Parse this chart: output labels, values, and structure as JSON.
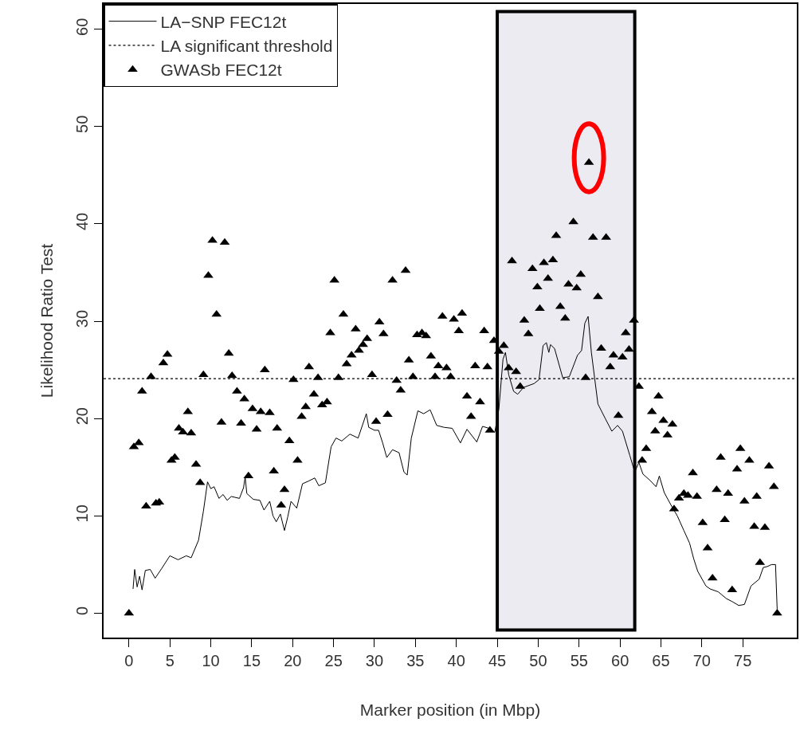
{
  "chart_data": {
    "type": "scatter",
    "xlabel": "Marker position (in Mbp)",
    "ylabel": "Likelihood Ratio Test",
    "xlim": [
      -3.1,
      81.6
    ],
    "ylim": [
      -2.5,
      62.6
    ],
    "xticks": [
      0,
      5,
      10,
      15,
      20,
      25,
      30,
      35,
      40,
      45,
      50,
      55,
      60,
      65,
      70,
      75
    ],
    "yticks": [
      0,
      10,
      20,
      30,
      40,
      50,
      60
    ],
    "grid": false,
    "legend": "top left",
    "ref_lines": [
      {
        "axis": "y",
        "value": 24.1,
        "label": "LA significant threshold",
        "color": "#000000",
        "line_style": "dotted"
      }
    ],
    "bands": [
      {
        "axis": "x",
        "from": 45,
        "to": 61.8,
        "label": null,
        "color": "#edebf2"
      }
    ],
    "series": [
      {
        "name": "LA−SNP FEC12t",
        "type": "line",
        "color": "#000000",
        "line_style": "solid",
        "marker": "none",
        "x": [
          0.5,
          0.7,
          1.0,
          1.3,
          1.6,
          2.0,
          2.6,
          3.2,
          4.0,
          5.0,
          6.0,
          7.0,
          7.6,
          8.5,
          9.1,
          9.6,
          10.0,
          10.4,
          11.0,
          11.5,
          12.0,
          12.5,
          13.5,
          14.0,
          14.2,
          14.4,
          15.2,
          16.0,
          16.5,
          17.2,
          17.6,
          18.0,
          18.5,
          19.0,
          19.4,
          19.8,
          20.5,
          21.2,
          22.0,
          22.7,
          23.2,
          24.0,
          24.7,
          25.3,
          26.0,
          27.0,
          28.0,
          29.0,
          29.3,
          30.0,
          30.5,
          31.0,
          31.5,
          32.2,
          33.0,
          33.6,
          34.0,
          34.5,
          35.3,
          36.0,
          36.8,
          37.6,
          38.5,
          39.5,
          40.5,
          41.3,
          42.5,
          43.2,
          44.0,
          44.7,
          45.2,
          45.7,
          46.0,
          46.4,
          47.0,
          47.5,
          48.2,
          49.5,
          50.1,
          50.6,
          51.0,
          51.3,
          51.5,
          52.0,
          53.0,
          53.8,
          54.8,
          55.3,
          55.7,
          56.1,
          56.5,
          57.3,
          58.2,
          59.0,
          59.7,
          60.3,
          61.2,
          61.8,
          62.3,
          62.8,
          63.6,
          64.4,
          64.8,
          65.4,
          66.3,
          67.0,
          67.8,
          68.5,
          69.0,
          69.5,
          70.5,
          71.0,
          72.0,
          73.0,
          73.7,
          74.5,
          75.2,
          76.0,
          77.0,
          77.5,
          78.0,
          78.5,
          79.0,
          79.2
        ],
        "values": [
          2.5,
          4.5,
          2.7,
          3.8,
          2.4,
          4.4,
          4.5,
          3.6,
          4.6,
          5.9,
          5.5,
          5.9,
          5.7,
          7.5,
          10.5,
          13.5,
          12.8,
          13.0,
          11.8,
          12.2,
          11.6,
          12.0,
          11.8,
          12.9,
          14.0,
          12.3,
          11.7,
          11.6,
          10.6,
          11.5,
          10.0,
          9.4,
          10.2,
          8.5,
          9.9,
          11.5,
          10.8,
          13.3,
          13.6,
          13.9,
          13.1,
          13.4,
          17.1,
          18.0,
          17.7,
          18.4,
          18.0,
          20.5,
          19.1,
          18.8,
          18.8,
          17.5,
          16.0,
          16.8,
          16.5,
          14.5,
          14.2,
          18.0,
          20.8,
          20.5,
          20.9,
          19.3,
          19.1,
          19.0,
          17.5,
          18.9,
          17.6,
          19.2,
          19.0,
          18.6,
          21.0,
          26.1,
          26.8,
          24.5,
          22.8,
          22.5,
          23.2,
          23.6,
          24.0,
          27.5,
          27.8,
          26.8,
          27.6,
          27.2,
          24.2,
          24.3,
          26.5,
          27.0,
          29.8,
          30.5,
          26.8,
          21.5,
          20.0,
          18.7,
          19.3,
          18.7,
          16.2,
          14.5,
          15.5,
          14.3,
          13.7,
          13.0,
          14.1,
          12.4,
          11.0,
          10.0,
          8.5,
          7.2,
          5.6,
          4.3,
          2.8,
          2.5,
          2.2,
          1.5,
          1.2,
          0.8,
          0.9,
          2.8,
          3.5,
          4.7,
          4.8,
          5.0,
          5.0,
          0.4
        ]
      },
      {
        "name": "GWASb FEC12t",
        "color": "#000000",
        "marker": "triangle",
        "x": [
          0,
          0.6,
          1.2,
          1.6,
          2.1,
          2.7,
          3.3,
          3.7,
          4.2,
          4.7,
          5.2,
          5.6,
          6.1,
          6.6,
          7.2,
          7.6,
          8.2,
          8.7,
          9.1,
          9.7,
          10.2,
          10.7,
          11.3,
          11.7,
          12.2,
          12.6,
          13.2,
          13.7,
          14.1,
          14.6,
          15.1,
          15.6,
          16.1,
          16.6,
          17.2,
          17.7,
          18.1,
          18.6,
          19.0,
          19.6,
          20.1,
          20.6,
          21.1,
          21.6,
          22.0,
          22.6,
          23.1,
          23.6,
          24.2,
          24.6,
          25.1,
          25.6,
          26.2,
          26.6,
          27.2,
          27.7,
          28.1,
          28.6,
          29.1,
          29.7,
          30.2,
          30.6,
          31.1,
          31.6,
          32.2,
          32.7,
          33.2,
          33.8,
          34.2,
          34.7,
          35.2,
          35.8,
          36.3,
          36.9,
          37.4,
          37.8,
          38.3,
          38.8,
          39.3,
          39.7,
          40.3,
          40.7,
          41.3,
          41.8,
          42.3,
          42.9,
          43.4,
          43.8,
          44.1,
          44.6,
          45.2,
          45.8,
          46.4,
          46.8,
          47.3,
          47.8,
          48.3,
          48.8,
          49.3,
          49.9,
          50.2,
          50.7,
          51.2,
          51.8,
          52.2,
          52.7,
          53.3,
          53.7,
          54.3,
          54.7,
          55.2,
          55.8,
          56.2,
          56.7,
          57.3,
          57.7,
          58.3,
          58.8,
          59.2,
          59.8,
          60.3,
          60.7,
          61.1,
          61.7,
          62.3,
          62.7,
          63.2,
          63.9,
          64.3,
          64.7,
          65.3,
          65.8,
          66.4,
          66.6,
          67.2,
          67.8,
          68.3,
          68.9,
          69.4,
          70.1,
          70.7,
          71.3,
          71.8,
          72.3,
          72.8,
          73.2,
          73.7,
          74.3,
          74.7,
          75.2,
          75.8,
          76.4,
          76.7,
          77.1,
          77.7,
          78.2,
          78.8,
          79.2
        ],
        "values": [
          0.0,
          17.1,
          17.5,
          22.8,
          11.0,
          24.3,
          11.3,
          11.4,
          25.7,
          26.6,
          15.7,
          16.0,
          19.0,
          18.6,
          20.7,
          18.5,
          15.3,
          13.4,
          24.5,
          34.7,
          38.3,
          30.7,
          19.6,
          38.1,
          26.7,
          24.4,
          22.8,
          19.5,
          22.0,
          14.1,
          21.0,
          18.9,
          20.7,
          25.0,
          20.6,
          14.6,
          19.0,
          11.1,
          12.7,
          17.7,
          24.0,
          15.7,
          20.2,
          21.2,
          25.3,
          22.5,
          24.2,
          21.4,
          21.7,
          28.8,
          34.2,
          24.2,
          30.7,
          25.6,
          26.5,
          29.2,
          27.0,
          27.6,
          28.2,
          24.5,
          19.7,
          29.9,
          28.7,
          20.4,
          34.2,
          23.9,
          22.9,
          35.2,
          26.0,
          24.3,
          28.6,
          28.8,
          28.5,
          26.4,
          24.3,
          25.4,
          30.5,
          25.2,
          24.3,
          30.2,
          29.0,
          30.8,
          22.3,
          20.2,
          25.4,
          21.7,
          29.0,
          25.3,
          18.8,
          28.0,
          26.9,
          27.5,
          25.2,
          36.2,
          24.8,
          23.3,
          30.1,
          28.7,
          35.4,
          33.5,
          31.3,
          36.0,
          34.4,
          36.3,
          38.8,
          31.5,
          30.3,
          33.8,
          40.2,
          33.4,
          34.8,
          24.2,
          46.3,
          38.6,
          32.5,
          27.2,
          38.6,
          25.3,
          26.5,
          20.3,
          26.3,
          28.8,
          27.1,
          30.1,
          23.3,
          15.7,
          16.9,
          20.7,
          18.7,
          22.3,
          19.8,
          18.3,
          19.4,
          10.7,
          11.8,
          12.3,
          12.1,
          14.4,
          12.0,
          9.3,
          6.7,
          3.6,
          12.7,
          16.0,
          9.6,
          12.3,
          2.4,
          14.8,
          16.9,
          11.5,
          15.7,
          8.9,
          12.0,
          5.2,
          8.8,
          15.1,
          13.0,
          0.0
        ]
      }
    ]
  }
}
